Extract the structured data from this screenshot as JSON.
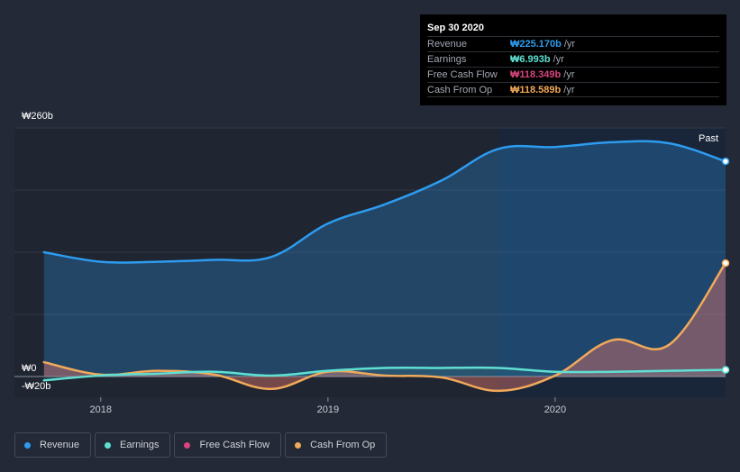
{
  "tooltip": {
    "title": "Sep 30 2020",
    "rows": [
      {
        "label": "Revenue",
        "value": "₩225.170b",
        "unit": "/yr",
        "color": "#2d9cf0"
      },
      {
        "label": "Earnings",
        "value": "₩6.993b",
        "unit": "/yr",
        "color": "#5fe0d2"
      },
      {
        "label": "Free Cash Flow",
        "value": "₩118.349b",
        "unit": "/yr",
        "color": "#d9457e"
      },
      {
        "label": "Cash From Op",
        "value": "₩118.589b",
        "unit": "/yr",
        "color": "#f1a95a"
      }
    ]
  },
  "legend": [
    {
      "label": "Revenue",
      "color": "#2d9cf0"
    },
    {
      "label": "Earnings",
      "color": "#5fe0d2"
    },
    {
      "label": "Free Cash Flow",
      "color": "#d9457e"
    },
    {
      "label": "Cash From Op",
      "color": "#f1a95a"
    }
  ],
  "chart_data": {
    "type": "area",
    "title": "",
    "xlabel": "",
    "ylabel": "",
    "ylim": [
      -20,
      260
    ],
    "y_tick_labels": [
      {
        "value": 260,
        "label": "₩260b"
      },
      {
        "value": 0,
        "label": "₩0"
      },
      {
        "value": -20,
        "label": "-₩20b"
      }
    ],
    "x_tick_labels": [
      {
        "value": 2018.0,
        "label": "2018"
      },
      {
        "value": 2019.0,
        "label": "2019"
      },
      {
        "value": 2020.0,
        "label": "2020"
      }
    ],
    "xlim": [
      2017.62,
      2020.75
    ],
    "past_label": "Past",
    "past_start": 2019.75,
    "series": [
      {
        "name": "Revenue",
        "color": "#2d9cf0",
        "x": [
          2017.75,
          2018.0,
          2018.25,
          2018.5,
          2018.75,
          2019.0,
          2019.25,
          2019.5,
          2019.75,
          2020.0,
          2020.25,
          2020.5,
          2020.75
        ],
        "values": [
          130,
          120,
          120,
          122,
          125,
          160,
          180,
          205,
          238,
          240,
          245,
          244,
          225
        ]
      },
      {
        "name": "Earnings",
        "color": "#5fe0d2",
        "x": [
          2017.75,
          2018.0,
          2018.25,
          2018.5,
          2018.75,
          2019.0,
          2019.25,
          2019.5,
          2019.75,
          2020.0,
          2020.25,
          2020.5,
          2020.75
        ],
        "values": [
          -4,
          1,
          3,
          5,
          1,
          6,
          9,
          9,
          9,
          5,
          5,
          6,
          7
        ]
      },
      {
        "name": "Free Cash Flow",
        "color": "#d9457e",
        "x": [
          2017.75,
          2018.0,
          2018.25,
          2018.5,
          2018.75,
          2019.0,
          2019.25,
          2019.5,
          2019.75,
          2020.0,
          2020.25,
          2020.5,
          2020.75
        ],
        "values": [
          14,
          2,
          5,
          1,
          -14,
          4,
          1,
          -2,
          -16,
          0,
          37,
          32,
          118.349
        ]
      },
      {
        "name": "Cash From Op",
        "color": "#f1a95a",
        "x": [
          2017.75,
          2018.0,
          2018.25,
          2018.5,
          2018.75,
          2019.0,
          2019.25,
          2019.5,
          2019.75,
          2020.0,
          2020.25,
          2020.5,
          2020.75
        ],
        "values": [
          15,
          2,
          6,
          2,
          -13,
          5,
          1,
          -1,
          -15,
          1,
          38,
          33,
          118.589
        ]
      }
    ]
  }
}
